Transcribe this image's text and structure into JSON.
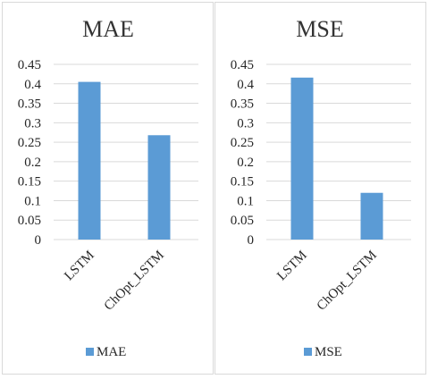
{
  "chart_data": [
    {
      "type": "bar",
      "title": "MAE",
      "categories": [
        "LSTM",
        "ChOpt_LSTM"
      ],
      "series": [
        {
          "name": "MAE",
          "values": [
            0.405,
            0.268
          ],
          "color": "#5b9bd5"
        }
      ],
      "yticks": [
        "0",
        "0.05",
        "0.1",
        "0.15",
        "0.2",
        "0.25",
        "0.3",
        "0.35",
        "0.4",
        "0.45"
      ],
      "ylim": [
        0,
        0.45
      ],
      "grid": true,
      "legend": "bottom"
    },
    {
      "type": "bar",
      "title": "MSE",
      "categories": [
        "LSTM",
        "ChOpt_LSTM"
      ],
      "series": [
        {
          "name": "MSE",
          "values": [
            0.416,
            0.12
          ],
          "color": "#5b9bd5"
        }
      ],
      "yticks": [
        "0",
        "0.05",
        "0.1",
        "0.15",
        "0.2",
        "0.25",
        "0.3",
        "0.35",
        "0.4",
        "0.45"
      ],
      "ylim": [
        0,
        0.45
      ],
      "grid": true,
      "legend": "bottom"
    }
  ]
}
